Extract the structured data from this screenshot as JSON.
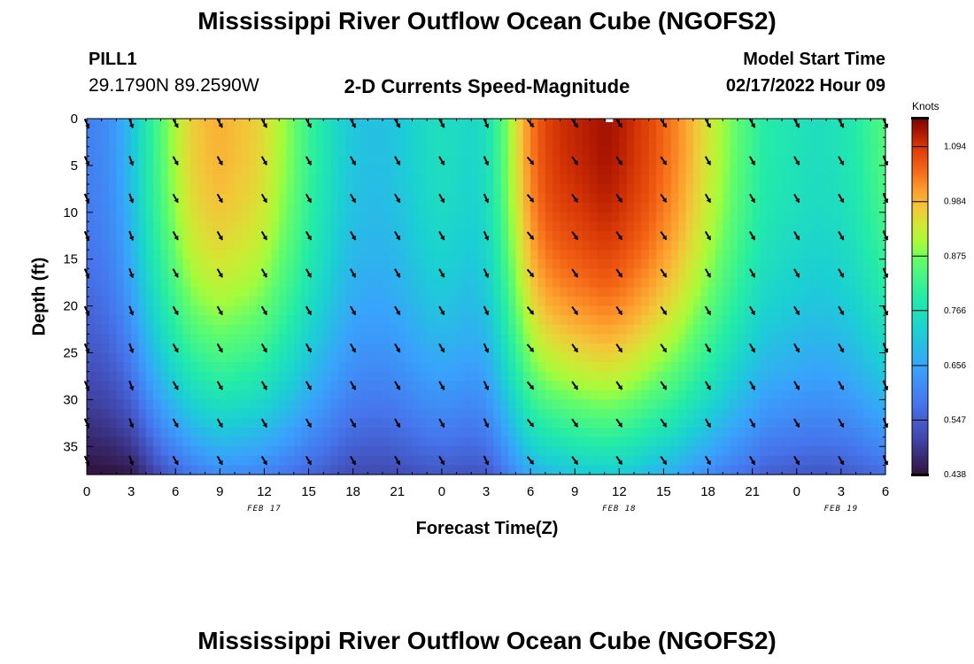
{
  "page": {
    "title": "Mississippi River Outflow Ocean Cube (NGOFS2)",
    "station": "PILL1",
    "coords": "29.1790N  89.2590W",
    "subtitle": "2-D Currents Speed-Magnitude",
    "start_label": "Model Start Time",
    "start_value": "02/17/2022 Hour 09",
    "footer_title": "Mississippi River Outflow Ocean Cube (NGOFS2)"
  },
  "chart_data": {
    "type": "heatmap",
    "xlabel": "Forecast Time(Z)",
    "ylabel": "Depth (ft)",
    "x_tick_labels": [
      "0",
      "3",
      "6",
      "9",
      "12",
      "15",
      "18",
      "21",
      "0",
      "3",
      "6",
      "9",
      "12",
      "15",
      "18",
      "21",
      "0",
      "3",
      "6"
    ],
    "date_labels": [
      {
        "text": "FEB 17",
        "hour": 12
      },
      {
        "text": "FEB 18",
        "hour": 36
      },
      {
        "text": "FEB 19",
        "hour": 51
      }
    ],
    "xlim_hours": [
      0,
      54
    ],
    "ylim_ft": [
      38,
      0
    ],
    "y_ticks": [
      0,
      5,
      10,
      15,
      20,
      25,
      30,
      35
    ],
    "colorbar": {
      "unit": "Knots",
      "ticks": [
        "1.094",
        "0.984",
        "0.875",
        "0.766",
        "0.656",
        "0.547",
        "0.438"
      ],
      "vmin": 0.438,
      "vmax": 1.15
    },
    "hours": [
      0,
      1,
      2,
      3,
      4,
      5,
      6,
      7,
      8,
      9,
      10,
      11,
      12,
      13,
      14,
      15,
      16,
      17,
      18,
      19,
      20,
      21,
      22,
      23,
      24,
      25,
      26,
      27,
      28,
      29,
      30,
      31,
      32,
      33,
      34,
      35,
      36,
      37,
      38,
      39,
      40,
      41,
      42,
      43,
      44,
      45,
      46,
      47,
      48,
      49,
      50,
      51,
      52,
      53,
      54
    ],
    "surface_speed_knots": [
      0.62,
      0.63,
      0.66,
      0.72,
      0.8,
      0.87,
      0.93,
      0.98,
      1.0,
      1.01,
      1.0,
      0.99,
      0.97,
      0.93,
      0.89,
      0.84,
      0.8,
      0.76,
      0.73,
      0.72,
      0.72,
      0.73,
      0.75,
      0.77,
      0.78,
      0.77,
      0.76,
      0.78,
      0.86,
      0.96,
      1.05,
      1.1,
      1.12,
      1.13,
      1.14,
      1.15,
      1.14,
      1.12,
      1.1,
      1.07,
      1.04,
      1.0,
      0.96,
      0.92,
      0.88,
      0.84,
      0.81,
      0.8,
      0.79,
      0.78,
      0.78,
      0.79,
      0.81,
      0.84,
      0.87
    ],
    "profile_decay_depth_ft": [
      22,
      22,
      22,
      22,
      24,
      26,
      27,
      28,
      29,
      30,
      30,
      30,
      30,
      30,
      30,
      30,
      30,
      30,
      30,
      30,
      30,
      30,
      30,
      30,
      30,
      30,
      30,
      30,
      31,
      32,
      33,
      33,
      33,
      34,
      34,
      34,
      34,
      34,
      33,
      33,
      33,
      32,
      32,
      31,
      31,
      31,
      30,
      30,
      30,
      30,
      30,
      30,
      30,
      30,
      30
    ],
    "arrow_hours": [
      0,
      3,
      6,
      9,
      12,
      15,
      18,
      21,
      24,
      27,
      30,
      33,
      36,
      39,
      42,
      45,
      48,
      51,
      54
    ],
    "arrow_depths_ft": [
      0.5,
      4.5,
      8.5,
      12.5,
      16.5,
      20.5,
      24.5,
      28.5,
      32.5,
      36.5
    ],
    "arrow_direction_deg": [
      155,
      160,
      150,
      150,
      150,
      150,
      150,
      150,
      150,
      155,
      140,
      145,
      145,
      145,
      150,
      150,
      150,
      150,
      155
    ]
  }
}
